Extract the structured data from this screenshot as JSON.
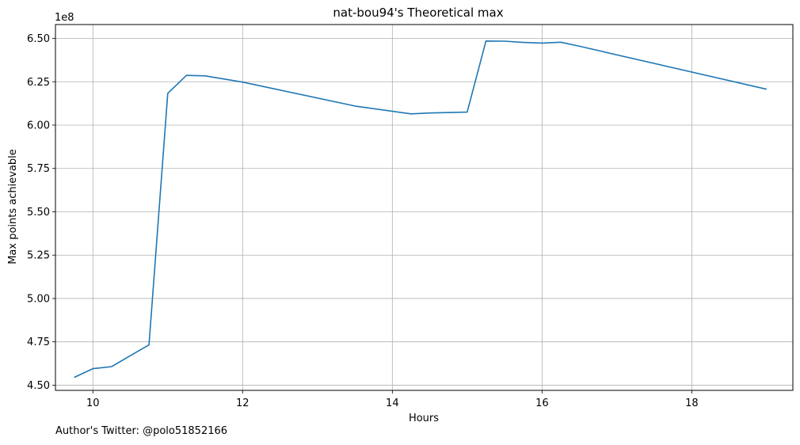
{
  "chart_data": {
    "type": "line",
    "title": "nat-bou94's Theoretical max",
    "xlabel": "Hours",
    "ylabel": "Max points achievable",
    "y_offset_label": "1e8",
    "xlim": [
      9.5,
      19.35
    ],
    "ylim": [
      4.47,
      6.58
    ],
    "x_ticks": [
      10,
      12,
      14,
      16,
      18
    ],
    "x_tick_labels": [
      "10",
      "12",
      "14",
      "16",
      "18"
    ],
    "y_ticks": [
      4.5,
      4.75,
      5.0,
      5.25,
      5.5,
      5.75,
      6.0,
      6.25,
      6.5
    ],
    "y_tick_labels": [
      "4.50",
      "4.75",
      "5.00",
      "5.25",
      "5.50",
      "5.75",
      "6.00",
      "6.25",
      "6.50"
    ],
    "grid": true,
    "series": [
      {
        "color": "#1f77b4",
        "x": [
          9.75,
          10.0,
          10.25,
          10.5,
          10.75,
          11.0,
          11.25,
          11.5,
          12.0,
          13.5,
          14.25,
          14.5,
          15.0,
          15.25,
          15.5,
          15.75,
          16.0,
          16.25,
          16.5,
          19.0
        ],
        "y": [
          4.545,
          4.595,
          4.607,
          4.67,
          4.732,
          6.183,
          6.287,
          6.284,
          6.248,
          6.11,
          6.065,
          6.07,
          6.075,
          6.485,
          6.484,
          6.477,
          6.473,
          6.478,
          6.455,
          6.207
        ]
      }
    ]
  },
  "footer": {
    "text": "Author's Twitter: @polo51852166"
  }
}
